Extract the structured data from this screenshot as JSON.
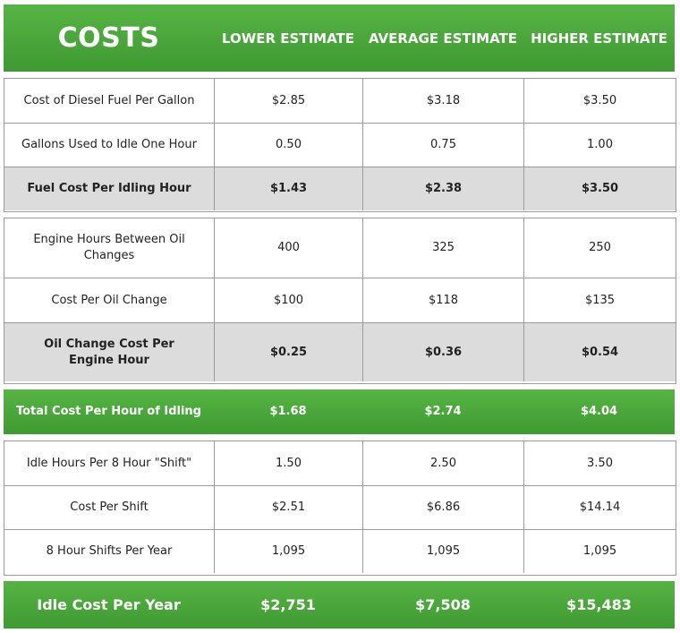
{
  "header": {
    "title": "COSTS",
    "columns": [
      "LOWER ESTIMATE",
      "AVERAGE ESTIMATE",
      "HIGHER ESTIMATE"
    ]
  },
  "fuel_section": {
    "rows": [
      {
        "label": "Cost of Diesel Fuel Per Gallon",
        "values": [
          "$2.85",
          "$3.18",
          "$3.50"
        ]
      },
      {
        "label": "Gallons Used to Idle One Hour",
        "values": [
          "0.50",
          "0.75",
          "1.00"
        ]
      }
    ],
    "subtotal": {
      "label": "Fuel Cost Per Idling Hour",
      "values": [
        "$1.43",
        "$2.38",
        "$3.50"
      ]
    }
  },
  "oil_section": {
    "rows": [
      {
        "label": "Engine Hours Between Oil Changes",
        "values": [
          "400",
          "325",
          "250"
        ]
      },
      {
        "label": "Cost Per Oil Change",
        "values": [
          "$100",
          "$118",
          "$135"
        ]
      }
    ],
    "subtotal": {
      "label": "Oil Change Cost Per Engine Hour",
      "values": [
        "$0.25",
        "$0.36",
        "$0.54"
      ]
    }
  },
  "total_idling": {
    "label": "Total Cost Per Hour of Idling",
    "values": [
      "$1.68",
      "$2.74",
      "$4.04"
    ]
  },
  "shift_section": {
    "rows": [
      {
        "label": "Idle Hours Per 8 Hour \"Shift\"",
        "values": [
          "1.50",
          "2.50",
          "3.50"
        ]
      },
      {
        "label": "Cost Per Shift",
        "values": [
          "$2.51",
          "$6.86",
          "$14.14"
        ]
      },
      {
        "label": "8 Hour Shifts Per Year",
        "values": [
          "1,095",
          "1,095",
          "1,095"
        ]
      }
    ]
  },
  "annual": {
    "label": "Idle Cost Per Year",
    "values": [
      "$2,751",
      "$7,508",
      "$15,483"
    ]
  },
  "colors": {
    "green": "#4caf3c",
    "subtotal_grey": "#dcdcdc",
    "border": "#9a9a9a"
  }
}
